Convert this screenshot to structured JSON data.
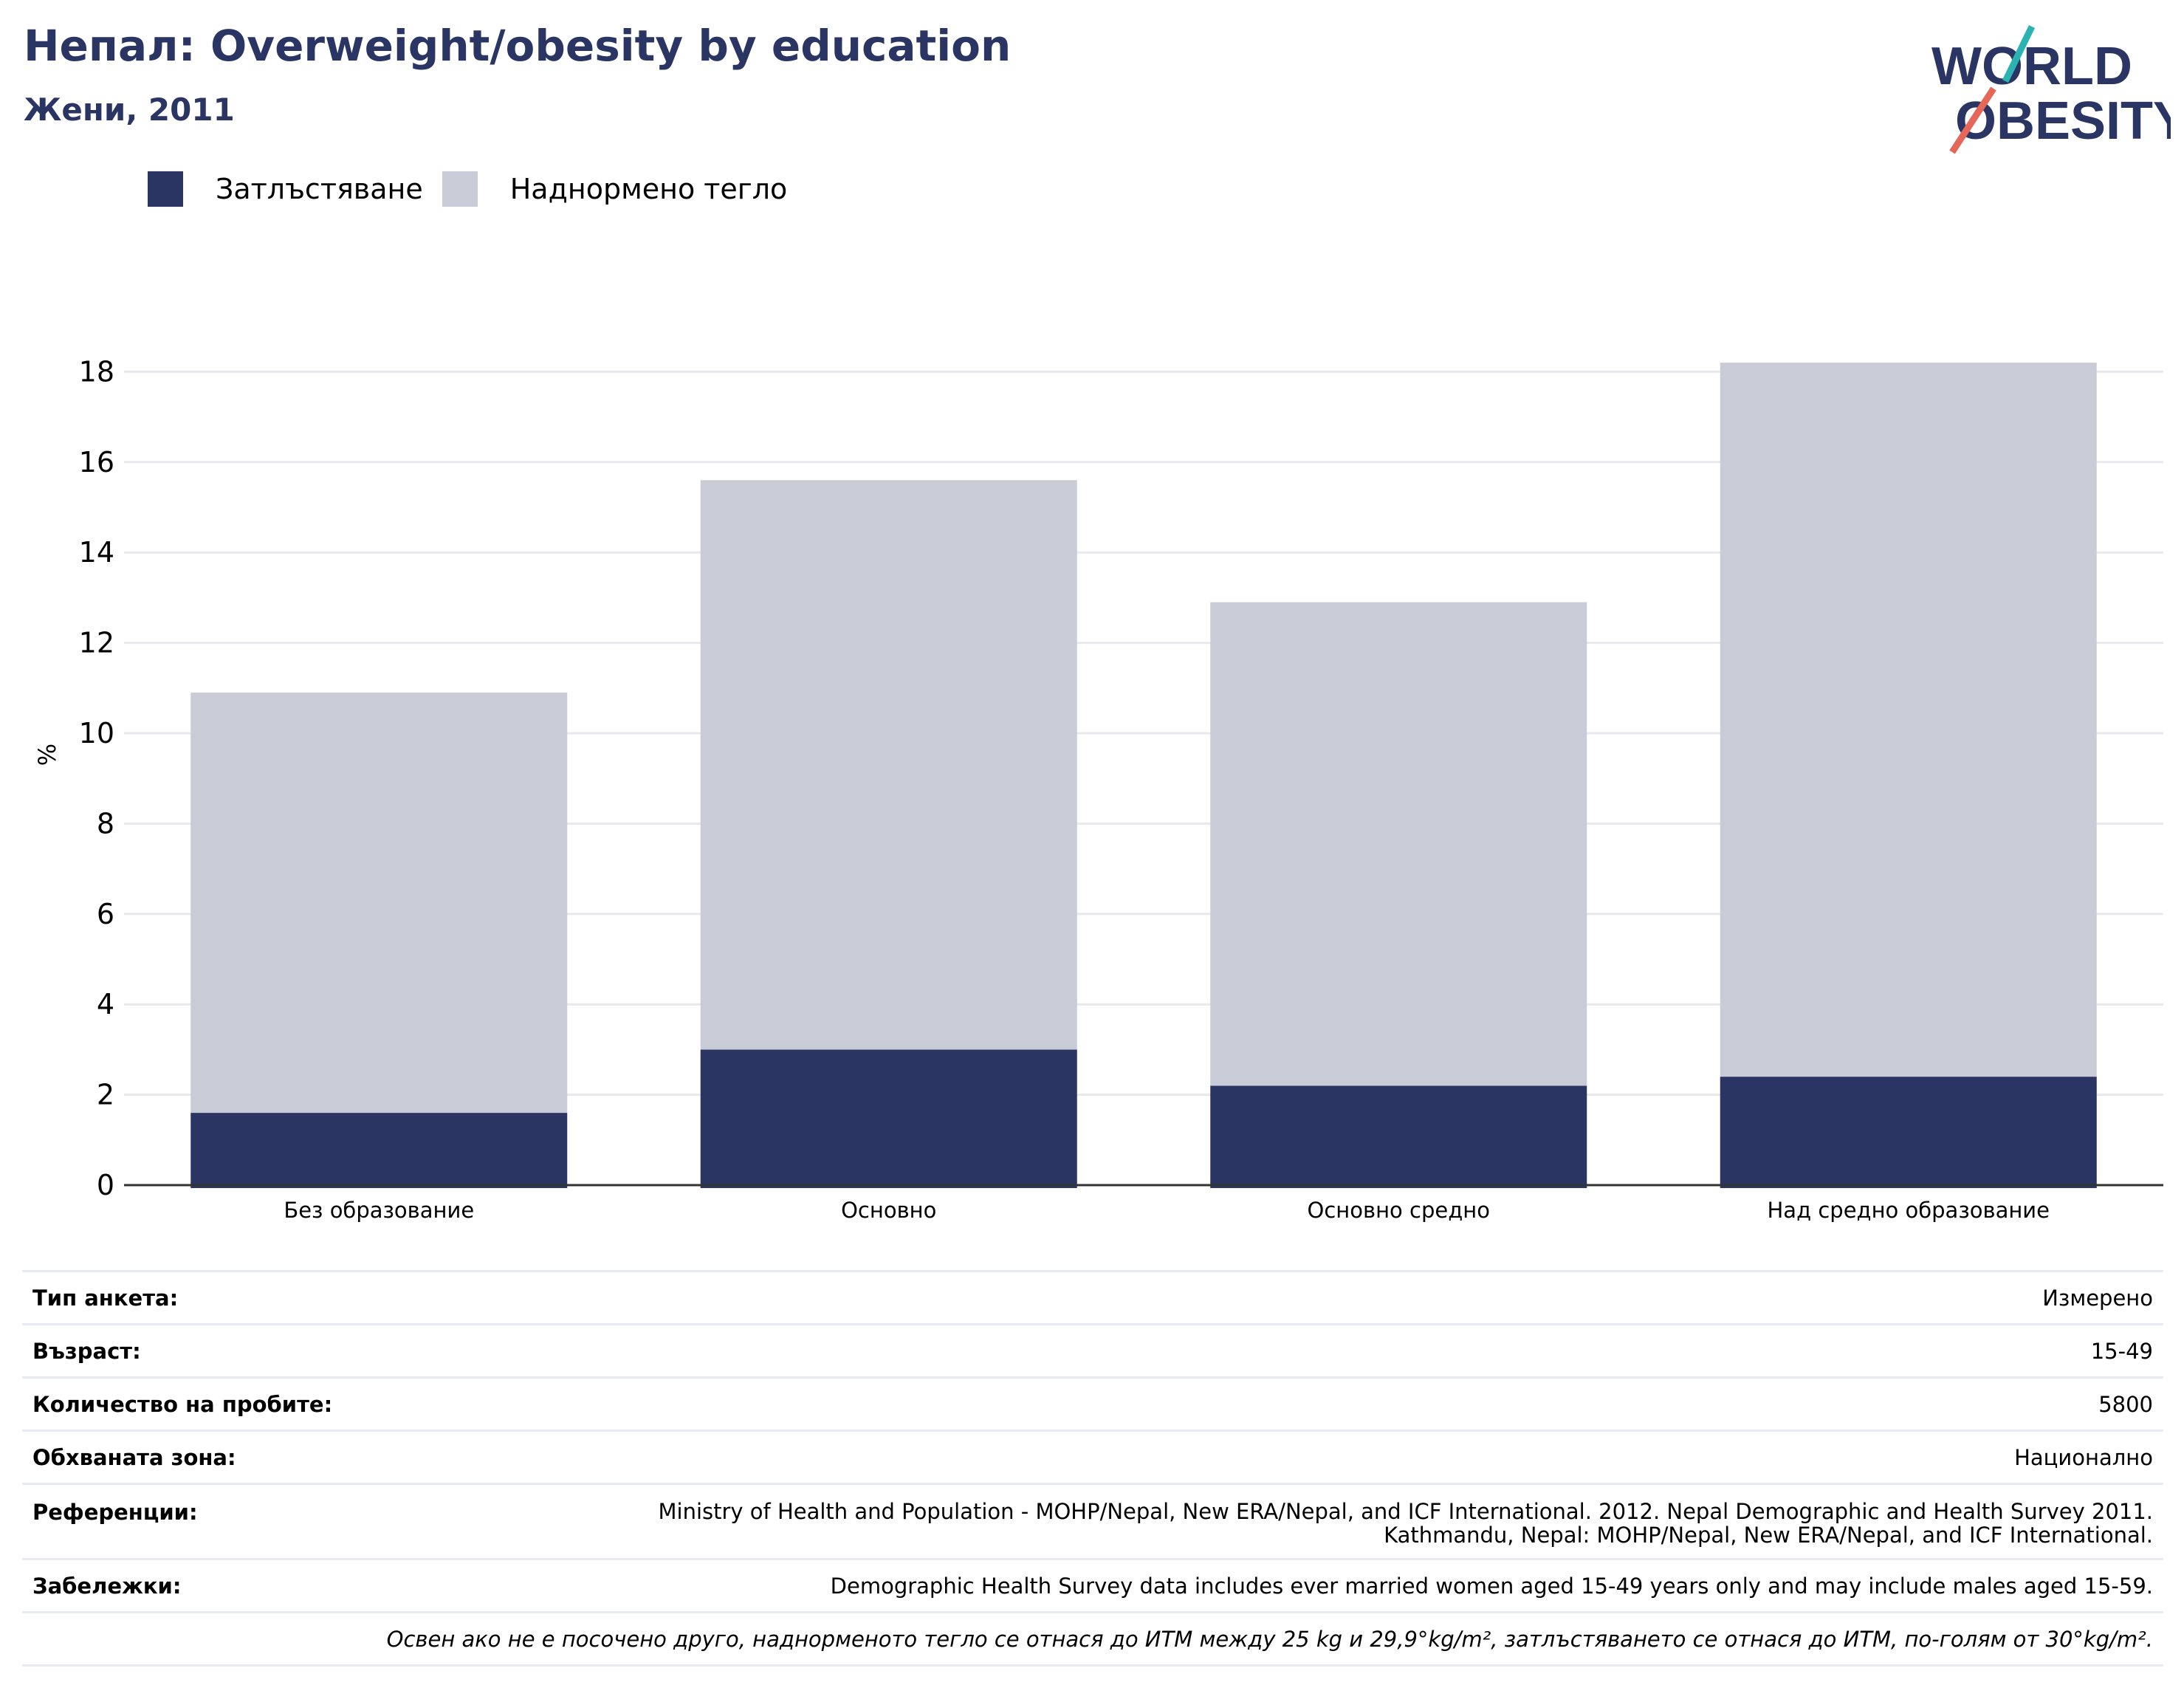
{
  "header": {
    "title": "Непал: Overweight/obesity by education",
    "subtitle": "Жени, 2011"
  },
  "logo": {
    "line1": "WORLD",
    "line2": "OBESITY"
  },
  "colors": {
    "obesity": "#2a3564",
    "overweight": "#c9cbd7",
    "grid": "#e8e8ee",
    "accent_teal": "#2bb3b1",
    "accent_coral": "#e5675a"
  },
  "chart_data": {
    "type": "bar",
    "stacked": true,
    "categories": [
      "Без образование",
      "Основно",
      "Основно средно",
      "Над средно образование"
    ],
    "series": [
      {
        "name": "Затлъстяване",
        "values": [
          1.6,
          3.0,
          2.2,
          2.4
        ]
      },
      {
        "name": "Наднормено тегло",
        "values": [
          9.3,
          12.6,
          10.7,
          15.8
        ]
      }
    ],
    "ylabel": "%",
    "ylim": [
      0,
      19
    ],
    "yticks": [
      0,
      2,
      4,
      6,
      8,
      10,
      12,
      14,
      16,
      18
    ],
    "grid": true,
    "legend": "top-left"
  },
  "meta": [
    {
      "key": "Тип анкета:",
      "value": "Измерено"
    },
    {
      "key": "Възраст:",
      "value": "15-49"
    },
    {
      "key": "Количество на пробите:",
      "value": "5800"
    },
    {
      "key": "Обхваната зона:",
      "value": "Национално"
    },
    {
      "key": "Референции:",
      "value": "Ministry of Health and Population - MOHP/Nepal, New ERA/Nepal, and ICF International. 2012. Nepal Demographic and Health Survey 2011.",
      "value2": "Kathmandu, Nepal: MOHP/Nepal, New ERA/Nepal, and ICF International."
    },
    {
      "key": "Забележки:",
      "value": "Demographic Health Survey data includes ever married women aged 15-49 years only and may include males aged 15-59."
    }
  ],
  "footnote": "Освен ако не е посочено друго, наднорменото тегло се отнася до ИТМ между 25 kg и 29,9°kg/m², затлъстяването се отнася до ИТМ, по-голям от 30°kg/m²."
}
